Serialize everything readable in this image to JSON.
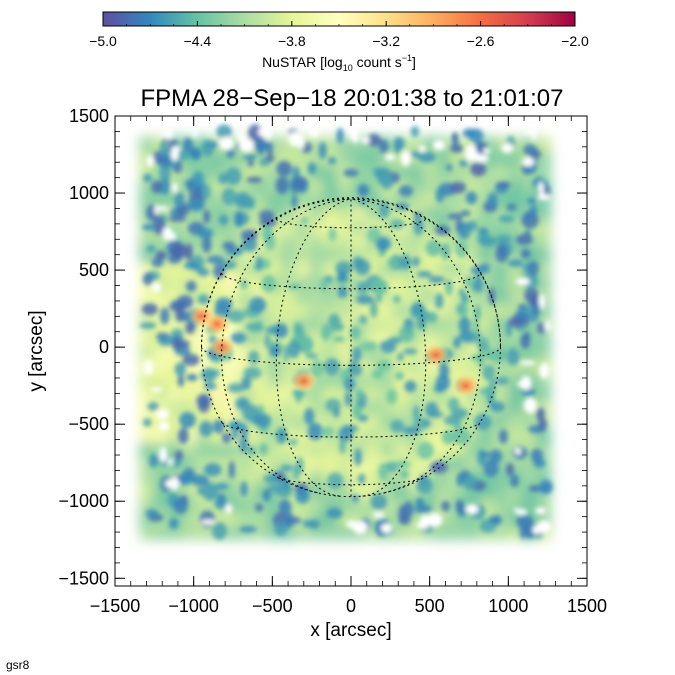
{
  "chart_data": {
    "type": "heatmap",
    "title": "FPMA 28−Sep−18 20:01:38 to 21:01:07",
    "xlabel": "x [arcsec]",
    "ylabel": "y [arcsec]",
    "xlim": [
      -1500,
      1500
    ],
    "ylim": [
      -1550,
      1500
    ],
    "x_ticks": [
      -1500,
      -1000,
      -500,
      0,
      500,
      1000,
      1500
    ],
    "y_ticks": [
      -1500,
      -1000,
      -500,
      0,
      500,
      1000,
      1500
    ],
    "colorbar": {
      "label_main": "NuSTAR [log",
      "label_sub": "10",
      "label_rest": " count s",
      "label_sup": "−1",
      "label_end": "]",
      "range": [
        -5.0,
        -2.0
      ],
      "ticks": [
        -5.0,
        -4.4,
        -3.8,
        -3.2,
        -2.6,
        -2.0
      ],
      "tick_labels": [
        "−5.0",
        "−4.4",
        "−3.8",
        "−3.2",
        "−2.6",
        "−2.0"
      ],
      "colormap": [
        "#5e4fa2",
        "#3288bd",
        "#66c2a5",
        "#abdda4",
        "#e6f598",
        "#ffffbf",
        "#fee08b",
        "#fdae61",
        "#f46d43",
        "#d53e4f",
        "#9e0142"
      ]
    },
    "solar_disk": {
      "center": [
        0,
        0
      ],
      "radius": 950,
      "grid": "dotted"
    },
    "data_extent": {
      "x": [
        -1300,
        1250
      ],
      "y": [
        -1200,
        1400
      ]
    },
    "hot_spots": [
      {
        "x": -950,
        "y": 200,
        "value": -3.1
      },
      {
        "x": -850,
        "y": 150,
        "value": -3.0
      },
      {
        "x": -820,
        "y": 0,
        "value": -3.1
      },
      {
        "x": -300,
        "y": -220,
        "value": -3.0
      },
      {
        "x": 540,
        "y": -50,
        "value": -2.9
      },
      {
        "x": 730,
        "y": -250,
        "value": -2.9
      }
    ],
    "grid": false
  },
  "footer_label": "gsr8"
}
